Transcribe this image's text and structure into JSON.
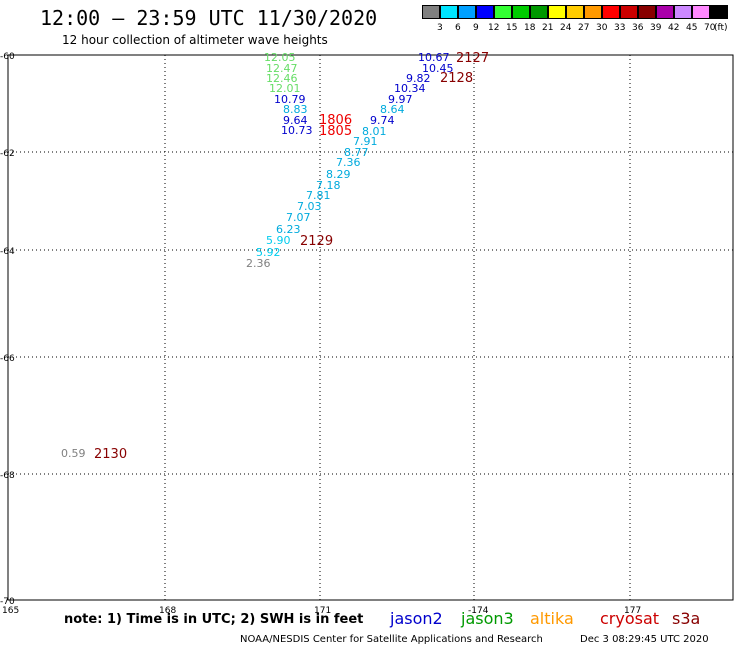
{
  "header": {
    "title": "12:00 – 23:59 UTC 11/30/2020",
    "subtitle": "12 hour collection of altimeter wave heights"
  },
  "legend": {
    "unit": "(ft)",
    "cells": [
      {
        "label": "3",
        "color": "#808080"
      },
      {
        "label": "6",
        "color": "#00e5ff"
      },
      {
        "label": "9",
        "color": "#00a0ff"
      },
      {
        "label": "12",
        "color": "#0000ff"
      },
      {
        "label": "15",
        "color": "#33ff33"
      },
      {
        "label": "18",
        "color": "#00cc00"
      },
      {
        "label": "21",
        "color": "#009900"
      },
      {
        "label": "24",
        "color": "#ffff00"
      },
      {
        "label": "27",
        "color": "#ffcc00"
      },
      {
        "label": "30",
        "color": "#ff9900"
      },
      {
        "label": "33",
        "color": "#ff0000"
      },
      {
        "label": "36",
        "color": "#cc0000"
      },
      {
        "label": "39",
        "color": "#880000"
      },
      {
        "label": "42",
        "color": "#aa00aa"
      },
      {
        "label": "45",
        "color": "#cc88ff"
      },
      {
        "label": "70",
        "color": "#ff88ff"
      },
      {
        "label": "",
        "color": "#000000"
      }
    ]
  },
  "map": {
    "lon_ticks": [
      "165",
      "168",
      "171",
      "-174",
      "177"
    ],
    "lat_ticks": [
      "-60",
      "-62",
      "-64",
      "-66",
      "-68",
      "-70"
    ],
    "wave_labels": [
      {
        "text": "12.05",
        "color": "#66dd66"
      },
      {
        "text": "12.47",
        "color": "#66dd66"
      },
      {
        "text": "12.46",
        "color": "#66dd66"
      },
      {
        "text": "12.01",
        "color": "#66dd66"
      },
      {
        "text": "10.79",
        "color": "#0000cc"
      },
      {
        "text": "8.83",
        "color": "#00aadd"
      },
      {
        "text": "9.64",
        "color": "#0000cc"
      },
      {
        "text": "10.73",
        "color": "#0000cc"
      },
      {
        "text": "10.67",
        "color": "#0000cc"
      },
      {
        "text": "10.45",
        "color": "#0000cc"
      },
      {
        "text": "9.82",
        "color": "#0000cc"
      },
      {
        "text": "10.34",
        "color": "#0000cc"
      },
      {
        "text": "9.97",
        "color": "#0000cc"
      },
      {
        "text": "8.64",
        "color": "#00aadd"
      },
      {
        "text": "9.74",
        "color": "#0000cc"
      },
      {
        "text": "8.01",
        "color": "#00aadd"
      },
      {
        "text": "7.91",
        "color": "#00aadd"
      },
      {
        "text": "8.77",
        "color": "#00aadd"
      },
      {
        "text": "7.36",
        "color": "#00aadd"
      },
      {
        "text": "8.29",
        "color": "#00aadd"
      },
      {
        "text": "7.18",
        "color": "#00aadd"
      },
      {
        "text": "7.81",
        "color": "#00aadd"
      },
      {
        "text": "7.03",
        "color": "#00aadd"
      },
      {
        "text": "7.07",
        "color": "#00aadd"
      },
      {
        "text": "6.23",
        "color": "#00aadd"
      },
      {
        "text": "5.90",
        "color": "#00ccee"
      },
      {
        "text": "5.92",
        "color": "#00ccee"
      },
      {
        "text": "2.36",
        "color": "#808080"
      },
      {
        "text": "0.59",
        "color": "#808080"
      }
    ],
    "time_labels": [
      {
        "text": "2127",
        "color": "#880000"
      },
      {
        "text": "2128",
        "color": "#880000"
      },
      {
        "text": "1806",
        "color": "#ee0000"
      },
      {
        "text": "1805",
        "color": "#ee0000"
      },
      {
        "text": "2129",
        "color": "#880000"
      },
      {
        "text": "2130",
        "color": "#880000"
      }
    ]
  },
  "footer": {
    "note": "note: 1) Time is in UTC; 2) SWH is in feet",
    "satellites": [
      {
        "name": "jason2",
        "color": "#0000cc"
      },
      {
        "name": "jason3",
        "color": "#009900"
      },
      {
        "name": "altika",
        "color": "#ff9900"
      },
      {
        "name": "cryosat",
        "color": "#cc0000"
      },
      {
        "name": "s3a",
        "color": "#880000"
      }
    ],
    "credit": "NOAA/NESDIS Center for Satellite Applications and Research",
    "date": "Dec  3 08:29:45 UTC 2020"
  }
}
